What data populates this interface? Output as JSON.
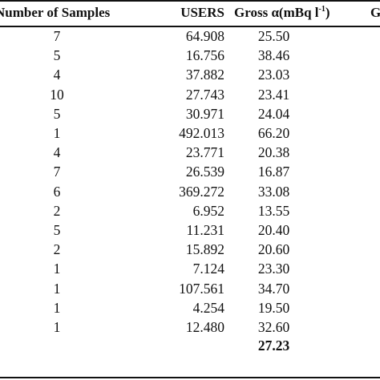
{
  "table": {
    "headers": {
      "samples": "Number of Samples",
      "users": "USERS",
      "alpha_prefix": "Gross α(mBq l",
      "alpha_sup": "-1",
      "alpha_suffix": ")",
      "extra": "G"
    },
    "rows": [
      {
        "samples": "7",
        "users": "64.908",
        "alpha": "25.50"
      },
      {
        "samples": "5",
        "users": "16.756",
        "alpha": "38.46"
      },
      {
        "samples": "4",
        "users": "37.882",
        "alpha": "23.03"
      },
      {
        "samples": "10",
        "users": "27.743",
        "alpha": "23.41"
      },
      {
        "samples": "5",
        "users": "30.971",
        "alpha": "24.04"
      },
      {
        "samples": "1",
        "users": "492.013",
        "alpha": "66.20"
      },
      {
        "samples": "4",
        "users": "23.771",
        "alpha": "20.38"
      },
      {
        "samples": "7",
        "users": "26.539",
        "alpha": "16.87"
      },
      {
        "samples": "6",
        "users": "369.272",
        "alpha": "33.08"
      },
      {
        "samples": "2",
        "users": "6.952",
        "alpha": "13.55"
      },
      {
        "samples": "5",
        "users": "11.231",
        "alpha": "20.40"
      },
      {
        "samples": "2",
        "users": "15.892",
        "alpha": "20.60"
      },
      {
        "samples": "1",
        "users": "7.124",
        "alpha": "23.30"
      },
      {
        "samples": "1",
        "users": "107.561",
        "alpha": "34.70"
      },
      {
        "samples": "1",
        "users": "4.254",
        "alpha": "19.50"
      },
      {
        "samples": "1",
        "users": "12.480",
        "alpha": "32.60"
      }
    ],
    "summary": {
      "alpha_mean": "27.23"
    }
  }
}
